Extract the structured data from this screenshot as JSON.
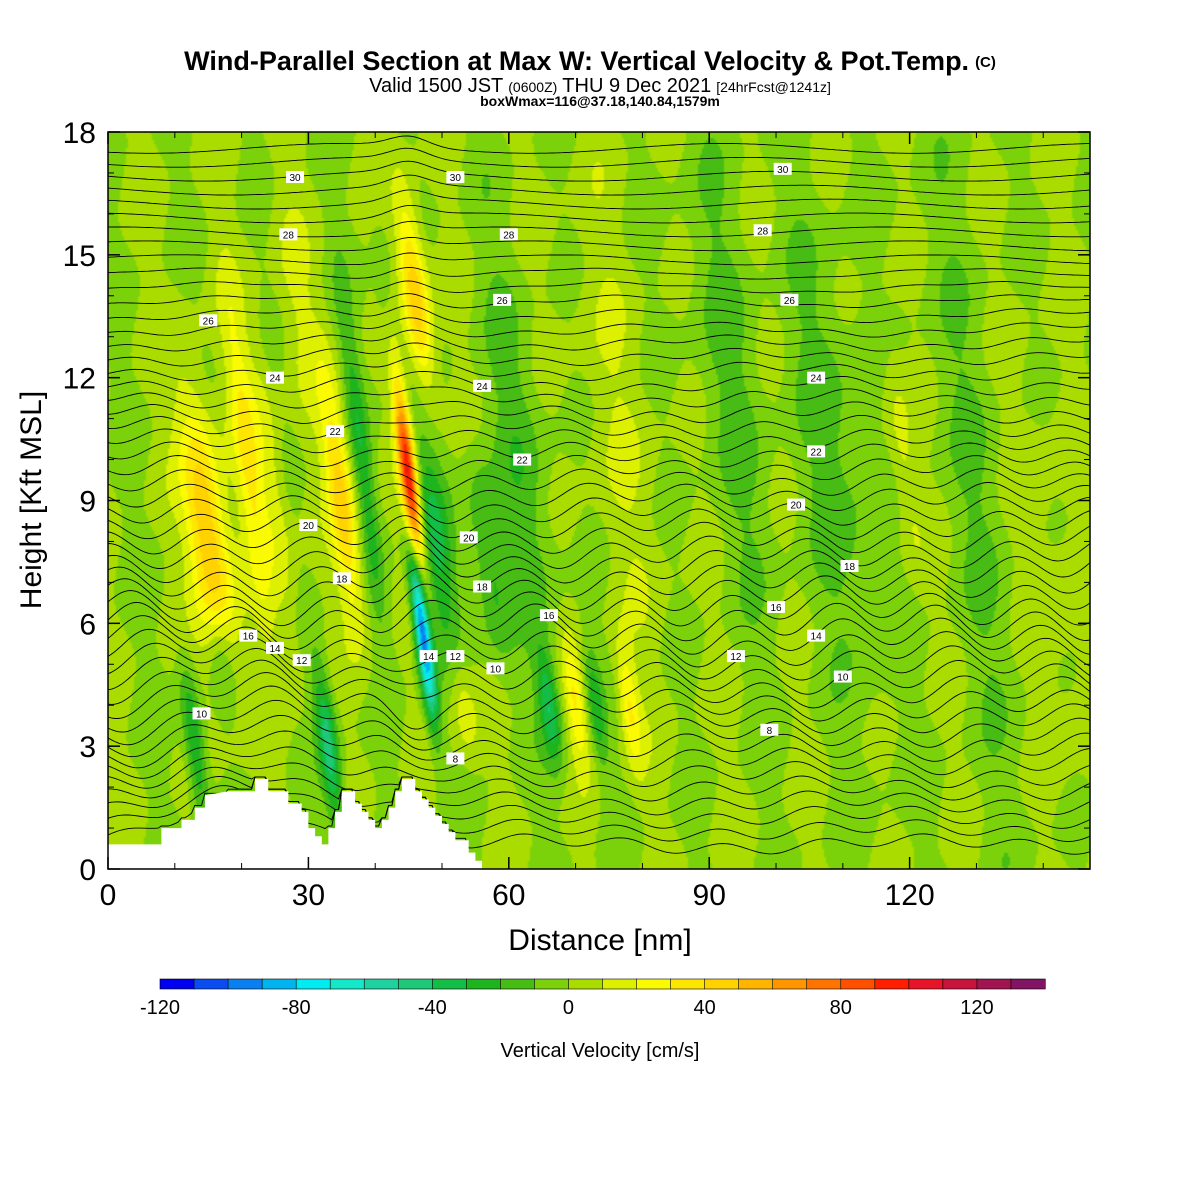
{
  "chart_data": {
    "type": "heatmap",
    "title": "Wind-Parallel Section at Max W: Vertical Velocity & Pot.Temp.",
    "title_mark": "(C)",
    "subtitle_main": "Valid 1500 JST",
    "subtitle_utc": "(0600Z)",
    "subtitle_date": "THU 9 Dec 2021",
    "subtitle_fcst": "[24hrFcst@1241z]",
    "subtitle_box": "boxWmax=116@37.18,140.84,1579m",
    "xlabel": "Distance [nm]",
    "ylabel": "Height [Kft MSL]",
    "xlim": [
      0,
      147
    ],
    "ylim": [
      0,
      18
    ],
    "xticks": [
      "0",
      "30",
      "60",
      "90",
      "120"
    ],
    "yticks": [
      "0",
      "3",
      "6",
      "9",
      "12",
      "15",
      "18"
    ],
    "colorbar": {
      "label": "Vertical Velocity [cm/s]",
      "range": [
        -120,
        140
      ],
      "step": 10,
      "tick_labels": [
        "-120",
        "-80",
        "-40",
        "0",
        "40",
        "80",
        "120"
      ],
      "colors": [
        "#0000f0",
        "#0a4cf0",
        "#0a80f0",
        "#00b4f0",
        "#00ecf0",
        "#14e8c8",
        "#1ed2a0",
        "#1ec878",
        "#14be46",
        "#1eb41e",
        "#46bc14",
        "#7cd20a",
        "#aadc00",
        "#dcf000",
        "#fafa00",
        "#ffe600",
        "#ffd200",
        "#ffb400",
        "#ff9600",
        "#ff7300",
        "#ff5000",
        "#ff1e00",
        "#e61428",
        "#c8143c",
        "#a01450",
        "#821464"
      ]
    },
    "theta_contour_labels": [
      "8",
      "10",
      "12",
      "14",
      "16",
      "18",
      "20",
      "22",
      "24",
      "26",
      "28",
      "30"
    ],
    "theta_contour_placements": [
      {
        "label": "30",
        "x": 28,
        "y": 16.9
      },
      {
        "label": "30",
        "x": 52,
        "y": 16.9
      },
      {
        "label": "30",
        "x": 101,
        "y": 17.1
      },
      {
        "label": "28",
        "x": 27,
        "y": 15.5
      },
      {
        "label": "28",
        "x": 60,
        "y": 15.5
      },
      {
        "label": "28",
        "x": 98,
        "y": 15.6
      },
      {
        "label": "26",
        "x": 15,
        "y": 13.4
      },
      {
        "label": "26",
        "x": 59,
        "y": 13.9
      },
      {
        "label": "26",
        "x": 102,
        "y": 13.9
      },
      {
        "label": "24",
        "x": 25,
        "y": 12.0
      },
      {
        "label": "24",
        "x": 56,
        "y": 11.8
      },
      {
        "label": "24",
        "x": 106,
        "y": 12.0
      },
      {
        "label": "22",
        "x": 34,
        "y": 10.7
      },
      {
        "label": "22",
        "x": 62,
        "y": 10.0
      },
      {
        "label": "22",
        "x": 106,
        "y": 10.2
      },
      {
        "label": "20",
        "x": 30,
        "y": 8.4
      },
      {
        "label": "20",
        "x": 54,
        "y": 8.1
      },
      {
        "label": "20",
        "x": 103,
        "y": 8.9
      },
      {
        "label": "18",
        "x": 35,
        "y": 7.1
      },
      {
        "label": "18",
        "x": 56,
        "y": 6.9
      },
      {
        "label": "18",
        "x": 111,
        "y": 7.4
      },
      {
        "label": "16",
        "x": 21,
        "y": 5.7
      },
      {
        "label": "16",
        "x": 66,
        "y": 6.2
      },
      {
        "label": "16",
        "x": 100,
        "y": 6.4
      },
      {
        "label": "14",
        "x": 25,
        "y": 5.4
      },
      {
        "label": "14",
        "x": 48,
        "y": 5.2
      },
      {
        "label": "14",
        "x": 106,
        "y": 5.7
      },
      {
        "label": "12",
        "x": 29,
        "y": 5.1
      },
      {
        "label": "12",
        "x": 52,
        "y": 5.2
      },
      {
        "label": "12",
        "x": 94,
        "y": 5.2
      },
      {
        "label": "10",
        "x": 14,
        "y": 3.8
      },
      {
        "label": "10",
        "x": 58,
        "y": 4.9
      },
      {
        "label": "10",
        "x": 110,
        "y": 4.7
      },
      {
        "label": "8",
        "x": 52,
        "y": 2.7
      },
      {
        "label": "8",
        "x": 99,
        "y": 3.4
      }
    ],
    "terrain_kft": [
      [
        0,
        0.6
      ],
      [
        8,
        0.6
      ],
      [
        8,
        1.0
      ],
      [
        11,
        1.0
      ],
      [
        11,
        1.2
      ],
      [
        13,
        1.2
      ],
      [
        13,
        1.5
      ],
      [
        14.5,
        1.5
      ],
      [
        14.5,
        1.8
      ],
      [
        18,
        1.9
      ],
      [
        21,
        1.9
      ],
      [
        21,
        1.9
      ],
      [
        22,
        1.9
      ],
      [
        22,
        2.2
      ],
      [
        24,
        2.2
      ],
      [
        24,
        1.9
      ],
      [
        27,
        1.9
      ],
      [
        27,
        1.6
      ],
      [
        29,
        1.6
      ],
      [
        29,
        1.4
      ],
      [
        30,
        1.4
      ],
      [
        30,
        1.0
      ],
      [
        31,
        1.0
      ],
      [
        31,
        0.8
      ],
      [
        32,
        0.8
      ],
      [
        32,
        0.6
      ],
      [
        33,
        0.6
      ],
      [
        33,
        1.0
      ],
      [
        34,
        1.0
      ],
      [
        34,
        1.4
      ],
      [
        35,
        1.4
      ],
      [
        35,
        1.9
      ],
      [
        37,
        1.9
      ],
      [
        37,
        1.6
      ],
      [
        38,
        1.6
      ],
      [
        38,
        1.4
      ],
      [
        39,
        1.4
      ],
      [
        39,
        1.2
      ],
      [
        40,
        1.2
      ],
      [
        40,
        1.0
      ],
      [
        41,
        1.0
      ],
      [
        41,
        1.2
      ],
      [
        42,
        1.2
      ],
      [
        42,
        1.5
      ],
      [
        43,
        1.5
      ],
      [
        43,
        1.9
      ],
      [
        44,
        1.9
      ],
      [
        44,
        2.2
      ],
      [
        46,
        2.2
      ],
      [
        46,
        1.9
      ],
      [
        47,
        1.9
      ],
      [
        47,
        1.7
      ],
      [
        48,
        1.7
      ],
      [
        48,
        1.5
      ],
      [
        49,
        1.5
      ],
      [
        49,
        1.3
      ],
      [
        50,
        1.3
      ],
      [
        50,
        1.1
      ],
      [
        51,
        1.1
      ],
      [
        51,
        0.9
      ],
      [
        52,
        0.9
      ],
      [
        52,
        0.7
      ],
      [
        54,
        0.7
      ],
      [
        54,
        0.4
      ],
      [
        55,
        0.4
      ],
      [
        55,
        0.2
      ],
      [
        56,
        0.2
      ],
      [
        56,
        0.0
      ],
      [
        147,
        0.0
      ]
    ],
    "features": [
      {
        "x": 15,
        "xw": 3,
        "y": 8.0,
        "yw": 3.5,
        "w": 55
      },
      {
        "x": 17,
        "xw": 2,
        "y": 5,
        "yw": 1.5,
        "w": -25
      },
      {
        "x": 21,
        "xw": 2,
        "y": 10,
        "yw": 4,
        "w": 30
      },
      {
        "x": 13,
        "xw": 1.5,
        "y": 3,
        "yw": 2,
        "w": -35
      },
      {
        "x": 25,
        "xw": 2,
        "y": 9,
        "yw": 4,
        "w": 18
      },
      {
        "x": 28,
        "xw": 3,
        "y": 14,
        "yw": 3,
        "w": 10
      },
      {
        "x": 33,
        "xw": 1.5,
        "y": 3,
        "yw": 2,
        "w": -45
      },
      {
        "x": 35,
        "xw": 2,
        "y": 9,
        "yw": 3,
        "w": 45
      },
      {
        "x": 38,
        "xw": 1.5,
        "y": 10,
        "yw": 4,
        "w": -25
      },
      {
        "x": 45,
        "xw": 1.3,
        "y": 9.5,
        "yw": 2.8,
        "w": 120
      },
      {
        "x": 47,
        "xw": 1.2,
        "y": 6,
        "yw": 2.2,
        "w": -115
      },
      {
        "x": 46,
        "xw": 2,
        "y": 14,
        "yw": 2.5,
        "w": 50
      },
      {
        "x": 43,
        "xw": 1.5,
        "y": 12,
        "yw": 3,
        "w": -25
      },
      {
        "x": 49,
        "xw": 2.5,
        "y": 8,
        "yw": 3,
        "w": -30
      },
      {
        "x": 57,
        "xw": 2.5,
        "y": 7.5,
        "yw": 2.5,
        "w": -25
      },
      {
        "x": 53,
        "xw": 2,
        "y": 4,
        "yw": 1.5,
        "w": 20
      },
      {
        "x": 66,
        "xw": 1.5,
        "y": 4,
        "yw": 1.5,
        "w": -35
      },
      {
        "x": 70,
        "xw": 1.5,
        "y": 4,
        "yw": 1.5,
        "w": 30
      },
      {
        "x": 73,
        "xw": 1.2,
        "y": 4,
        "yw": 1.5,
        "w": -25
      },
      {
        "x": 78,
        "xw": 1.5,
        "y": 4,
        "yw": 1.5,
        "w": 30
      },
      {
        "x": 62,
        "xw": 4,
        "y": 10,
        "yw": 5,
        "w": -15
      },
      {
        "x": 76,
        "xw": 6,
        "y": 11,
        "yw": 6,
        "w": 8
      },
      {
        "x": 93,
        "xw": 5,
        "y": 12,
        "yw": 6,
        "w": -12
      },
      {
        "x": 109,
        "xw": 5,
        "y": 10,
        "yw": 6,
        "w": -15
      },
      {
        "x": 119,
        "xw": 2,
        "y": 10,
        "yw": 3,
        "w": 15
      },
      {
        "x": 131,
        "xw": 6,
        "y": 9,
        "yw": 8,
        "w": -10
      },
      {
        "x": 140,
        "xw": 5,
        "y": 7,
        "yw": 6,
        "w": 10
      }
    ]
  }
}
